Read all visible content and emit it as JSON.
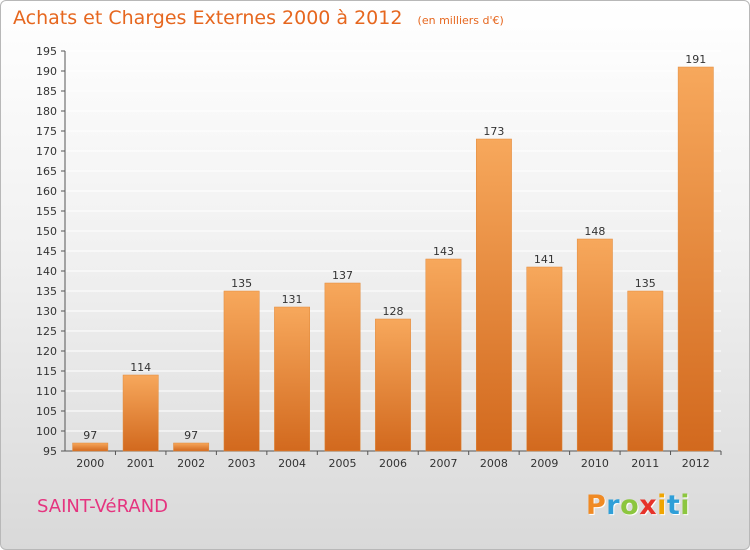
{
  "header": {
    "title": "Achats et Charges Externes 2000 à 2012",
    "unit": "(en milliers d'€)"
  },
  "footer": {
    "commune": "SAINT-VéRAND",
    "logo_letters": [
      "P",
      "r",
      "o",
      "x",
      "i",
      "t",
      "i"
    ],
    "logo_colors": [
      "#f08a24",
      "#2f9fd8",
      "#8cc63f",
      "#e6332a",
      "#f0a500",
      "#2f9fd8",
      "#8cc63f"
    ]
  },
  "colors": {
    "bar_light": "#f7a85c",
    "bar_dark": "#d2691e",
    "title": "#e6671f",
    "commune": "#e5347f",
    "grid": "#ffffff",
    "text": "#333333"
  },
  "chart_data": {
    "type": "bar",
    "title": "Achats et Charges Externes 2000 à 2012",
    "subtitle": "(en milliers d'€)",
    "categories": [
      "2000",
      "2001",
      "2002",
      "2003",
      "2004",
      "2005",
      "2006",
      "2007",
      "2008",
      "2009",
      "2010",
      "2011",
      "2012"
    ],
    "values": [
      97,
      114,
      97,
      135,
      131,
      137,
      128,
      143,
      173,
      141,
      148,
      135,
      191
    ],
    "ylim": [
      95,
      195
    ],
    "yticks": [
      95,
      100,
      105,
      110,
      115,
      120,
      125,
      130,
      135,
      140,
      145,
      150,
      155,
      160,
      165,
      170,
      175,
      180,
      185,
      190,
      195
    ],
    "grid": true,
    "data_labels": true,
    "xlabel": "",
    "ylabel": ""
  }
}
